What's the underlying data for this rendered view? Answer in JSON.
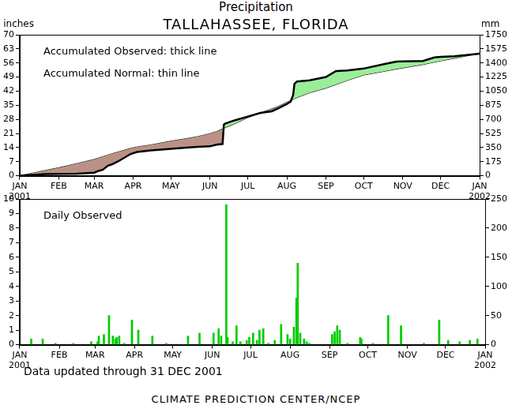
{
  "chart_data": [
    {
      "type": "line",
      "title": "Precipitation",
      "subtitle": "TALLAHASSEE, FLORIDA",
      "y_label": "inches",
      "y2_label": "mm",
      "legend": "upper left",
      "grid": false,
      "x": [
        0,
        10,
        11,
        20,
        31,
        45,
        59,
        62,
        66,
        70,
        73,
        78,
        88,
        93,
        104,
        120,
        132,
        141,
        151,
        156,
        161,
        162,
        163,
        170,
        181,
        191,
        200,
        205,
        212,
        215,
        217,
        218,
        220,
        230,
        243,
        251,
        260,
        273,
        289,
        299,
        304,
        320,
        329,
        334,
        345,
        359,
        365
      ],
      "series": [
        {
          "name": "Accumulated Observed: thick line",
          "color": "#000000",
          "line_style": "solid",
          "marker": "none",
          "values": [
            0,
            0.4,
            0.4,
            0.8,
            0.9,
            1.0,
            1.5,
            2.3,
            3.0,
            5.0,
            5.6,
            7.1,
            10.8,
            11.8,
            12.6,
            13.4,
            14.0,
            14.3,
            14.6,
            15.4,
            15.8,
            25.4,
            25.9,
            27.4,
            29.4,
            31.2,
            32.0,
            33.4,
            35.6,
            36.8,
            40.0,
            45.6,
            46.8,
            47.4,
            49.0,
            52.0,
            52.3,
            53.2,
            55.4,
            56.7,
            56.8,
            57.0,
            58.7,
            59.0,
            59.3,
            60.2,
            60.6
          ]
        },
        {
          "name": "Accumulated Normal: thin line",
          "color": "#000000",
          "line_style": "solid",
          "marker": "none",
          "values": [
            0,
            1.3,
            1.4,
            2.6,
            4.0,
            6.0,
            8.1,
            8.7,
            9.5,
            10.3,
            10.9,
            11.8,
            13.6,
            14.3,
            15.3,
            17.2,
            18.4,
            19.4,
            20.9,
            21.9,
            23.3,
            23.6,
            23.9,
            25.6,
            28.9,
            31.2,
            33.2,
            34.4,
            36.5,
            37.3,
            37.9,
            38.2,
            38.8,
            41.2,
            43.5,
            45.3,
            47.3,
            50.0,
            51.8,
            53.0,
            53.5,
            55.2,
            56.4,
            57.0,
            58.3,
            60.0,
            61.0
          ]
        }
      ],
      "xlim": [
        0,
        365
      ],
      "xticks": [
        {
          "value": 0,
          "label": "JAN 2001"
        },
        {
          "value": 31,
          "label": "FEB"
        },
        {
          "value": 59,
          "label": "MAR"
        },
        {
          "value": 90,
          "label": "APR"
        },
        {
          "value": 120,
          "label": "MAY"
        },
        {
          "value": 151,
          "label": "JUN"
        },
        {
          "value": 181,
          "label": "JUL"
        },
        {
          "value": 212,
          "label": "AUG"
        },
        {
          "value": 243,
          "label": "SEP"
        },
        {
          "value": 273,
          "label": "OCT"
        },
        {
          "value": 304,
          "label": "NOV"
        },
        {
          "value": 334,
          "label": "DEC"
        },
        {
          "value": 365,
          "label": "JAN 2002"
        }
      ],
      "ylim": [
        0,
        70
      ],
      "yticks": [
        0,
        7,
        14,
        21,
        28,
        35,
        42,
        49,
        56,
        63,
        70
      ],
      "y2lim": [
        0,
        1750
      ],
      "y2ticks": [
        0,
        175,
        350,
        525,
        700,
        875,
        1050,
        1225,
        1400,
        1575,
        1750
      ]
    },
    {
      "type": "bar",
      "note": "Data updated through 31 DEC 2001",
      "source": "CLIMATE PREDICTION CENTER/NCEP",
      "legend": "upper left",
      "grid": false,
      "x": [
        9,
        18,
        28,
        42,
        56,
        61,
        62,
        66,
        70,
        73,
        75,
        76,
        78,
        82,
        88,
        93,
        104,
        115,
        132,
        141,
        152,
        156,
        158,
        162,
        163,
        167,
        170,
        173,
        178,
        180,
        183,
        186,
        188,
        191,
        195,
        200,
        205,
        210,
        212,
        215,
        217,
        218,
        220,
        223,
        225,
        227,
        245,
        247,
        249,
        251,
        257,
        267,
        268,
        277,
        289,
        299,
        317,
        329,
        336,
        345,
        353,
        359
      ],
      "series": [
        {
          "name": "Daily Observed",
          "color": "#00cc00",
          "values": [
            0.4,
            0.4,
            0.1,
            0.1,
            0.2,
            0.2,
            0.6,
            0.7,
            2.0,
            0.6,
            0.4,
            0.5,
            0.6,
            0.1,
            1.7,
            1.0,
            0.6,
            0.1,
            0.6,
            0.8,
            0.8,
            1.1,
            0.6,
            9.6,
            0.5,
            0.2,
            1.3,
            0.2,
            0.3,
            0.5,
            0.8,
            0.3,
            1.0,
            1.1,
            0.1,
            0.3,
            1.4,
            0.7,
            0.4,
            1.2,
            3.2,
            5.6,
            0.8,
            0.4,
            0.2,
            0.1,
            0.7,
            0.9,
            1.3,
            1.0,
            0.1,
            0.5,
            0.4,
            0.1,
            2.0,
            1.3,
            0.1,
            1.7,
            0.3,
            0.2,
            0.3,
            0.4
          ]
        }
      ],
      "xlim": [
        0,
        365
      ],
      "xticks": [
        {
          "value": 0,
          "label": "JAN 2001"
        },
        {
          "value": 31,
          "label": "FEB"
        },
        {
          "value": 59,
          "label": "MAR"
        },
        {
          "value": 90,
          "label": "APR"
        },
        {
          "value": 120,
          "label": "MAY"
        },
        {
          "value": 151,
          "label": "JUN"
        },
        {
          "value": 181,
          "label": "JUL"
        },
        {
          "value": 212,
          "label": "AUG"
        },
        {
          "value": 243,
          "label": "SEP"
        },
        {
          "value": 273,
          "label": "OCT"
        },
        {
          "value": 304,
          "label": "NOV"
        },
        {
          "value": 334,
          "label": "DEC"
        },
        {
          "value": 365,
          "label": "JAN 2002"
        }
      ],
      "ylim": [
        0,
        10
      ],
      "yticks": [
        0,
        1,
        2,
        3,
        4,
        5,
        6,
        7,
        8,
        9,
        10
      ],
      "y2lim": [
        0,
        250
      ],
      "y2ticks": [
        0,
        50,
        100,
        150,
        200,
        250
      ]
    }
  ]
}
